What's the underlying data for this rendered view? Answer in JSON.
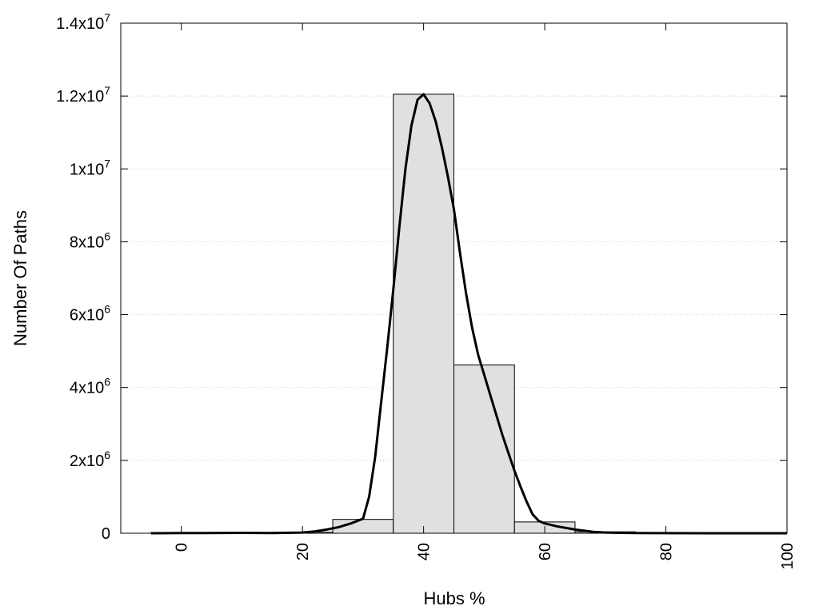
{
  "chart_data": {
    "type": "bar",
    "xlabel": "Hubs %",
    "ylabel": "Number Of Paths",
    "xlim": [
      -10,
      100
    ],
    "ylim": [
      0,
      14000000
    ],
    "x_ticks": [
      {
        "value": 0,
        "label": "0"
      },
      {
        "value": 20,
        "label": "20"
      },
      {
        "value": 40,
        "label": "40"
      },
      {
        "value": 60,
        "label": "60"
      },
      {
        "value": 80,
        "label": "80"
      },
      {
        "value": 100,
        "label": "100"
      }
    ],
    "y_ticks": [
      {
        "value": 0,
        "mantissa": "0",
        "exp": ""
      },
      {
        "value": 2000000,
        "mantissa": "2x10",
        "exp": "6"
      },
      {
        "value": 4000000,
        "mantissa": "4x10",
        "exp": "6"
      },
      {
        "value": 6000000,
        "mantissa": "6x10",
        "exp": "6"
      },
      {
        "value": 8000000,
        "mantissa": "8x10",
        "exp": "6"
      },
      {
        "value": 10000000,
        "mantissa": "1x10",
        "exp": "7"
      },
      {
        "value": 12000000,
        "mantissa": "1.2x10",
        "exp": "7"
      },
      {
        "value": 14000000,
        "mantissa": "1.4x10",
        "exp": "7"
      }
    ],
    "grid": "horizontal-dotted",
    "bar_color": "#e0e0e0",
    "bars": [
      {
        "x0": -5,
        "x1": 5,
        "value": 3000
      },
      {
        "x0": 5,
        "x1": 15,
        "value": 8000
      },
      {
        "x0": 15,
        "x1": 25,
        "value": 30000
      },
      {
        "x0": 25,
        "x1": 35,
        "value": 380000
      },
      {
        "x0": 35,
        "x1": 45,
        "value": 12050000
      },
      {
        "x0": 45,
        "x1": 55,
        "value": 4620000
      },
      {
        "x0": 55,
        "x1": 65,
        "value": 310000
      },
      {
        "x0": 65,
        "x1": 75,
        "value": 40000
      },
      {
        "x0": 75,
        "x1": 85,
        "value": 8000
      },
      {
        "x0": 85,
        "x1": 95,
        "value": 3000
      },
      {
        "x0": 95,
        "x1": 105,
        "value": 2000
      }
    ],
    "curve": {
      "points": [
        [
          -5,
          0
        ],
        [
          0,
          5000
        ],
        [
          10,
          10000
        ],
        [
          15,
          5000
        ],
        [
          20,
          20000
        ],
        [
          22,
          50000
        ],
        [
          24,
          100000
        ],
        [
          26,
          170000
        ],
        [
          28,
          270000
        ],
        [
          30,
          400000
        ],
        [
          31,
          1000000
        ],
        [
          32,
          2100000
        ],
        [
          33,
          3600000
        ],
        [
          34,
          5100000
        ],
        [
          35,
          6700000
        ],
        [
          36,
          8400000
        ],
        [
          37,
          10000000
        ],
        [
          38,
          11200000
        ],
        [
          39,
          11900000
        ],
        [
          40,
          12050000
        ],
        [
          41,
          11800000
        ],
        [
          42,
          11300000
        ],
        [
          43,
          10600000
        ],
        [
          44,
          9800000
        ],
        [
          45,
          8900000
        ],
        [
          46,
          7700000
        ],
        [
          47,
          6600000
        ],
        [
          48,
          5650000
        ],
        [
          49,
          4900000
        ],
        [
          50,
          4350000
        ],
        [
          51,
          3800000
        ],
        [
          52,
          3250000
        ],
        [
          53,
          2700000
        ],
        [
          54,
          2200000
        ],
        [
          55,
          1720000
        ],
        [
          56,
          1280000
        ],
        [
          57,
          870000
        ],
        [
          58,
          520000
        ],
        [
          59,
          340000
        ],
        [
          60,
          270000
        ],
        [
          62,
          190000
        ],
        [
          65,
          100000
        ],
        [
          68,
          40000
        ],
        [
          70,
          20000
        ],
        [
          75,
          5000
        ],
        [
          80,
          2000
        ],
        [
          90,
          1000
        ],
        [
          100,
          0
        ]
      ]
    }
  }
}
